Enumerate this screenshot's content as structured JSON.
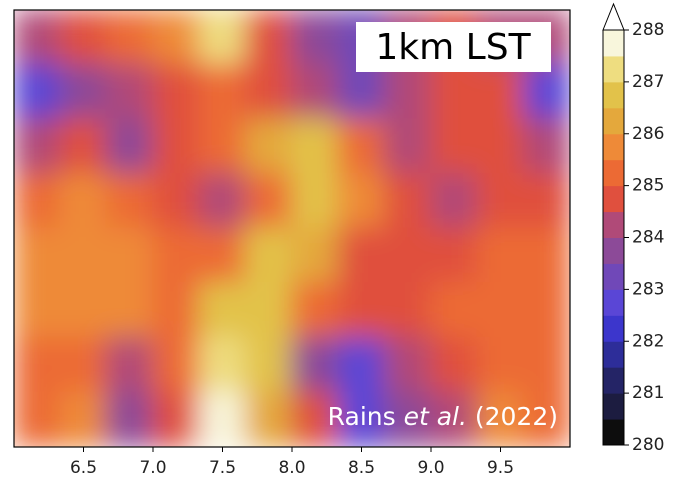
{
  "chart_data": {
    "type": "heatmap",
    "title": "1km LST",
    "annotation": [
      "Rains ",
      "et al.",
      " (2022)"
    ],
    "xlim": [
      6,
      10
    ],
    "xticks": [
      6.5,
      {
        "value": 7,
        "label": "7.0"
      },
      7.5,
      {
        "value": 8,
        "label": "8.0"
      },
      8.5,
      {
        "value": 9,
        "label": "9.0"
      },
      9.5
    ],
    "z": [
      [
        284,
        284.5,
        285,
        285.5,
        287,
        284.5,
        283.5,
        283,
        284,
        284.5,
        284,
        284
      ],
      [
        282.5,
        283.5,
        284,
        284.5,
        285,
        284.5,
        284,
        283,
        284,
        284.5,
        284.5,
        282.5
      ],
      [
        284,
        284.5,
        283.5,
        284.5,
        285,
        286,
        286.5,
        285,
        284,
        284.5,
        284.5,
        284
      ],
      [
        285,
        285.5,
        285,
        284.5,
        284,
        285,
        286.5,
        285.5,
        284.5,
        284,
        284.5,
        284.5
      ],
      [
        285.5,
        285.5,
        285.5,
        285,
        285,
        286.5,
        286,
        284.5,
        284.5,
        284.5,
        285,
        285
      ],
      [
        285.5,
        285.5,
        285.5,
        285,
        286.5,
        286.5,
        285,
        284.5,
        284.5,
        285,
        285,
        285
      ],
      [
        285,
        285,
        284,
        285,
        287,
        286.5,
        283.5,
        282.5,
        284,
        284.5,
        285,
        285
      ],
      [
        285,
        285.5,
        283.5,
        284.5,
        287.5,
        286,
        284.5,
        282.5,
        283.5,
        284,
        285.5,
        285
      ]
    ],
    "colorbar": {
      "lim": [
        280,
        288
      ],
      "ticks": [
        280,
        281,
        282,
        283,
        284,
        285,
        286,
        287,
        288
      ],
      "colors": [
        "#0d0d0d",
        "#1c1c40",
        "#242466",
        "#2d2d99",
        "#3c36cc",
        "#5a46d6",
        "#7048b8",
        "#8c4a98",
        "#b04a78",
        "#e0503e",
        "#ec6a34",
        "#ee8a38",
        "#e4a83c",
        "#e2c24a",
        "#eedd80",
        "#f8f6dc"
      ],
      "over_color": "#ffffff"
    }
  }
}
